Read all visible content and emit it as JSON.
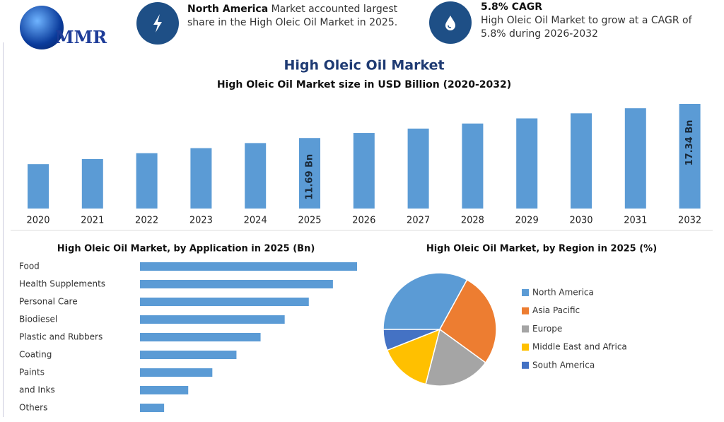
{
  "header": {
    "logo": "MMR",
    "highlights": [
      {
        "title": "North America",
        "text": "Market accounted largest share in the High Oleic Oil Market in 2025."
      },
      {
        "title": "5.8% CAGR",
        "text": "High Oleic Oil Market to grow at a CAGR of 5.8% during 2026-2032"
      }
    ]
  },
  "chart_data": [
    {
      "type": "bar",
      "title": "High Oleic Oil Market",
      "subtitle": "High Oleic Oil Market size in USD Billion (2020-2032)",
      "categories": [
        "2020",
        "2021",
        "2022",
        "2023",
        "2024",
        "2025",
        "2026",
        "2027",
        "2028",
        "2029",
        "2030",
        "2031",
        "2032"
      ],
      "values": [
        7.36,
        8.2,
        9.17,
        10.01,
        10.85,
        11.69,
        12.53,
        13.25,
        14.09,
        14.94,
        15.78,
        16.62,
        17.34
      ],
      "value_labels": [
        null,
        null,
        null,
        null,
        null,
        "11.69 Bn",
        null,
        null,
        null,
        null,
        null,
        null,
        "17.34 Bn"
      ],
      "color": "#5b9bd5"
    },
    {
      "type": "hbar",
      "title": "High Oleic Oil Market, by Application in 2025 (Bn)",
      "categories": [
        "Food",
        "Health Supplements",
        "Personal Care",
        "Biodiesel",
        "Plastic and Rubbers",
        "Coating",
        "Paints",
        "and Inks",
        "Others"
      ],
      "values": [
        2.34,
        2.08,
        1.82,
        1.56,
        1.3,
        1.04,
        0.78,
        0.52,
        0.26
      ],
      "color": "#5b9bd5"
    },
    {
      "type": "pie",
      "title": "High Oleic Oil Market, by Region in 2025 (%)",
      "categories": [
        "North America",
        "Asia Pacific",
        "Europe",
        "Middle East and Africa",
        "South America"
      ],
      "values": [
        33,
        27,
        19,
        15,
        6
      ],
      "colors": [
        "#5b9bd5",
        "#ed7d31",
        "#a5a5a5",
        "#ffc000",
        "#4472c4"
      ]
    }
  ]
}
